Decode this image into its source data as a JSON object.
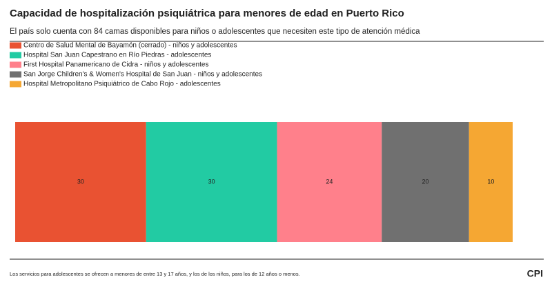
{
  "chart_data": {
    "type": "bar",
    "stacked": true,
    "orientation": "horizontal",
    "title": "Capacidad de hospitalización psiquiátrica para menores de edad en Puerto Rico",
    "subtitle": "El país solo cuenta con 84 camas disponibles para niños o adolescentes que necesiten este tipo de atención médica",
    "series": [
      {
        "name": "Centro de Salud Mental de Bayamón (cerrado) - niños y adolescentes",
        "color": "#e95232",
        "values": [
          30
        ]
      },
      {
        "name": "Hospital San Juan Capestrano en Río Piedras - adolescentes",
        "color": "#22cba3",
        "values": [
          30
        ]
      },
      {
        "name": "First Hospital Panamericano de Cidra - niños y adolescentes",
        "color": "#ff808b",
        "values": [
          24
        ]
      },
      {
        "name": "San Jorge Children's & Women's Hospital de San Juan - niños y adolescentes",
        "color": "#707070",
        "values": [
          20
        ]
      },
      {
        "name": "Hospital Metropolitano Psiquiátrico de Cabo Rojo - adolescentes",
        "color": "#f5a733",
        "values": [
          10
        ]
      }
    ],
    "xlim": [
      0,
      114
    ],
    "note": "Los servicios para adolescentes se ofrecen a menores de entre 13 y 17 años, y los de los niños, para los de 12 años o menos.",
    "logo": "CPI"
  }
}
